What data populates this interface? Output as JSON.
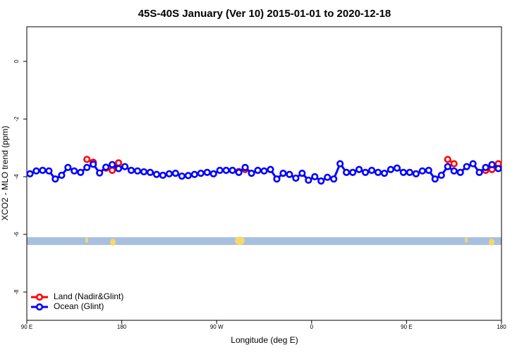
{
  "chart_data": {
    "type": "line",
    "title": "45S-40S January (Ver 10)   2015-01-01 to 2020-12-18",
    "x_label": "Longitude (deg E)",
    "y_label": "XCO2 - MLO trend (ppm)",
    "x": [
      93,
      99,
      105,
      111,
      117,
      123,
      129,
      135,
      141,
      147,
      153,
      159,
      165,
      171,
      177,
      183,
      189,
      195,
      201,
      207,
      213,
      219,
      225,
      231,
      237,
      243,
      249,
      255,
      261,
      267,
      273,
      279,
      285,
      291,
      297,
      303,
      309,
      315,
      321,
      327,
      333,
      339,
      345,
      351,
      357,
      363,
      369,
      375,
      381,
      387,
      393,
      399,
      405,
      411,
      417,
      423,
      429,
      435,
      441,
      447,
      453,
      459,
      465,
      471,
      477,
      483,
      489,
      495,
      501,
      507,
      513,
      519,
      525,
      531,
      537
    ],
    "series": [
      {
        "name": "Land (Nadir&Glint)",
        "color": "#ff0000",
        "values": [
          null,
          null,
          null,
          null,
          null,
          null,
          null,
          null,
          null,
          -3.4,
          -3.5,
          null,
          -3.7,
          -3.78,
          -3.52,
          null,
          null,
          null,
          null,
          null,
          null,
          null,
          null,
          null,
          null,
          null,
          null,
          null,
          null,
          null,
          null,
          null,
          null,
          -3.82,
          -3.75,
          null,
          null,
          null,
          null,
          null,
          null,
          null,
          null,
          null,
          null,
          null,
          null,
          null,
          null,
          null,
          null,
          null,
          null,
          null,
          null,
          null,
          null,
          null,
          null,
          null,
          null,
          null,
          null,
          null,
          null,
          null,
          -3.4,
          -3.55,
          null,
          null,
          null,
          null,
          -3.78,
          -3.75,
          -3.55
        ]
      },
      {
        "name": "Ocean (Glint)",
        "color": "#0000ff",
        "values": [
          -3.9,
          -3.8,
          -3.78,
          -3.8,
          -4.08,
          -3.95,
          -3.68,
          -3.8,
          -3.85,
          -3.68,
          -3.57,
          -3.87,
          -3.67,
          -3.58,
          -3.72,
          -3.65,
          -3.78,
          -3.8,
          -3.83,
          -3.85,
          -3.92,
          -3.95,
          -3.9,
          -3.88,
          -3.98,
          -3.96,
          -3.92,
          -3.88,
          -3.85,
          -3.9,
          -3.78,
          -3.78,
          -3.78,
          -3.85,
          -3.68,
          -3.88,
          -3.78,
          -3.8,
          -3.75,
          -4.08,
          -3.88,
          -3.92,
          -4.05,
          -3.88,
          -4.12,
          -4.0,
          -4.15,
          -4.02,
          -4.08,
          -3.55,
          -3.85,
          -3.85,
          -3.75,
          -3.85,
          -3.78,
          -3.85,
          -3.88,
          -3.75,
          -3.7,
          -3.85,
          -3.85,
          -3.9,
          -3.8,
          -3.78,
          -4.08,
          -3.95,
          -3.65,
          -3.8,
          -3.85,
          -3.65,
          -3.55,
          -3.85,
          -3.68,
          -3.58,
          -3.72
        ]
      }
    ],
    "xlim": [
      90,
      540
    ],
    "ylim": [
      -8.98,
      1.2
    ],
    "xticks": [
      {
        "value": 90,
        "label": "90 E"
      },
      {
        "value": 180,
        "label": "180"
      },
      {
        "value": 270,
        "label": "90 W"
      },
      {
        "value": 360,
        "label": "0"
      },
      {
        "value": 450,
        "label": "90 E"
      },
      {
        "value": 540,
        "label": "180"
      }
    ],
    "yticks": [
      0,
      -2,
      -4,
      -6,
      -8
    ],
    "legend": "bottom-left"
  }
}
